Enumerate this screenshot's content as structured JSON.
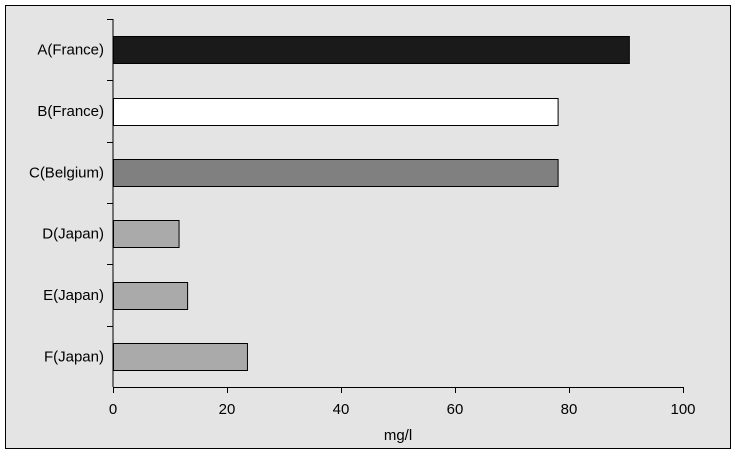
{
  "chart_data": {
    "type": "bar",
    "orientation": "horizontal",
    "title": "",
    "xlabel": "mg/l",
    "ylabel": "",
    "categories": [
      "A(France)",
      "B(France)",
      "C(Belgium)",
      "D(Japan)",
      "E(Japan)",
      "F(Japan)"
    ],
    "values": [
      90.5,
      78,
      78,
      11.5,
      13,
      23.5
    ],
    "bar_colors": [
      "#1a1a1a",
      "#ffffff",
      "#808080",
      "#aaaaaa",
      "#aaaaaa",
      "#aaaaaa"
    ],
    "xlim": [
      0,
      100
    ],
    "xticks": [
      0,
      20,
      40,
      60,
      80,
      100
    ],
    "grid": false,
    "legend": "none",
    "background": "#e4e4e4"
  }
}
